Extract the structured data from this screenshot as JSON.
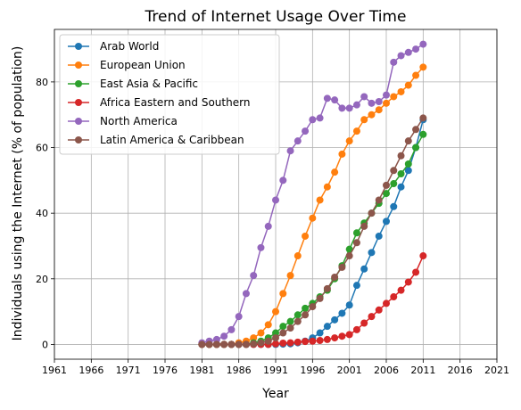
{
  "chart_data": {
    "type": "line",
    "title": "Trend of Internet Usage Over Time",
    "xlabel": "Year",
    "ylabel": "Individuals using the Internet (% of population)",
    "xlim": [
      1961,
      2021
    ],
    "ylim": [
      -4.5,
      96
    ],
    "xticks": [
      1961,
      1966,
      1971,
      1976,
      1981,
      1986,
      1991,
      1996,
      2001,
      2006,
      2011,
      2016,
      2021
    ],
    "yticks": [
      0,
      20,
      40,
      60,
      80
    ],
    "grid": true,
    "legend_position": "top-left",
    "x": [
      1981,
      1982,
      1983,
      1984,
      1985,
      1986,
      1987,
      1988,
      1989,
      1990,
      1991,
      1992,
      1993,
      1994,
      1995,
      1996,
      1997,
      1998,
      1999,
      2000,
      2001,
      2002,
      2003,
      2004,
      2005,
      2006,
      2007,
      2008,
      2009,
      2010,
      2011
    ],
    "series": [
      {
        "name": "Arab World",
        "color": "#1f77b4",
        "values": [
          0,
          0,
          0,
          0,
          0,
          0,
          0,
          0,
          0,
          0,
          0,
          0.1,
          0.2,
          0.5,
          1.0,
          2.0,
          3.5,
          5.5,
          7.5,
          9.5,
          12.0,
          18.0,
          23.0,
          28.0,
          33.0,
          37.5,
          42.0,
          48.0,
          53.0,
          60.0,
          68.5
        ]
      },
      {
        "name": "European Union",
        "color": "#ff7f0e",
        "values": [
          0,
          0,
          0,
          0,
          0,
          0.5,
          1.0,
          2.0,
          3.5,
          6.0,
          10.0,
          15.5,
          21.0,
          27.0,
          33.0,
          38.5,
          44.0,
          48.0,
          52.5,
          58.0,
          62.0,
          65.0,
          68.5,
          70.0,
          71.5,
          73.5,
          75.5,
          77.0,
          79.0,
          82.0,
          84.5
        ]
      },
      {
        "name": "East Asia & Pacific",
        "color": "#2ca02c",
        "values": [
          0,
          0,
          0,
          0,
          0,
          0,
          0,
          0.5,
          1.0,
          2.0,
          3.5,
          5.5,
          7.0,
          9.0,
          11.0,
          12.5,
          14.5,
          16.5,
          20.0,
          24.0,
          29.0,
          34.0,
          37.0,
          40.0,
          43.0,
          46.0,
          49.0,
          52.0,
          55.0,
          60.0,
          64.0
        ]
      },
      {
        "name": "Africa Eastern and Southern",
        "color": "#d62728",
        "values": [
          0,
          0,
          0,
          0,
          0,
          0,
          0,
          0,
          0,
          0,
          0.2,
          0.4,
          0.5,
          0.7,
          0.9,
          1.0,
          1.2,
          1.5,
          2.0,
          2.5,
          3.0,
          4.5,
          6.5,
          8.5,
          10.5,
          12.5,
          14.5,
          16.5,
          19.0,
          22.0,
          27.0
        ]
      },
      {
        "name": "North America",
        "color": "#9467bd",
        "values": [
          0.5,
          1.0,
          1.5,
          2.5,
          4.5,
          8.5,
          15.5,
          21.0,
          29.5,
          36.0,
          44.0,
          50.0,
          59.0,
          62.0,
          65.0,
          68.5,
          69.0,
          75.0,
          74.5,
          72.0,
          72.0,
          73.0,
          75.5,
          73.5,
          74.0,
          76.0,
          86.0,
          88.0,
          89.0,
          90.0,
          91.5
        ]
      },
      {
        "name": "Latin America & Caribbean",
        "color": "#8c564b",
        "values": [
          0,
          0,
          0,
          0,
          0,
          0,
          0,
          0.2,
          0.5,
          1.0,
          2.0,
          3.5,
          5.0,
          7.0,
          9.0,
          11.5,
          14.0,
          17.0,
          20.5,
          23.5,
          27.0,
          31.0,
          36.0,
          40.0,
          44.0,
          48.5,
          53.0,
          57.5,
          62.0,
          65.5,
          69.0
        ]
      }
    ]
  }
}
